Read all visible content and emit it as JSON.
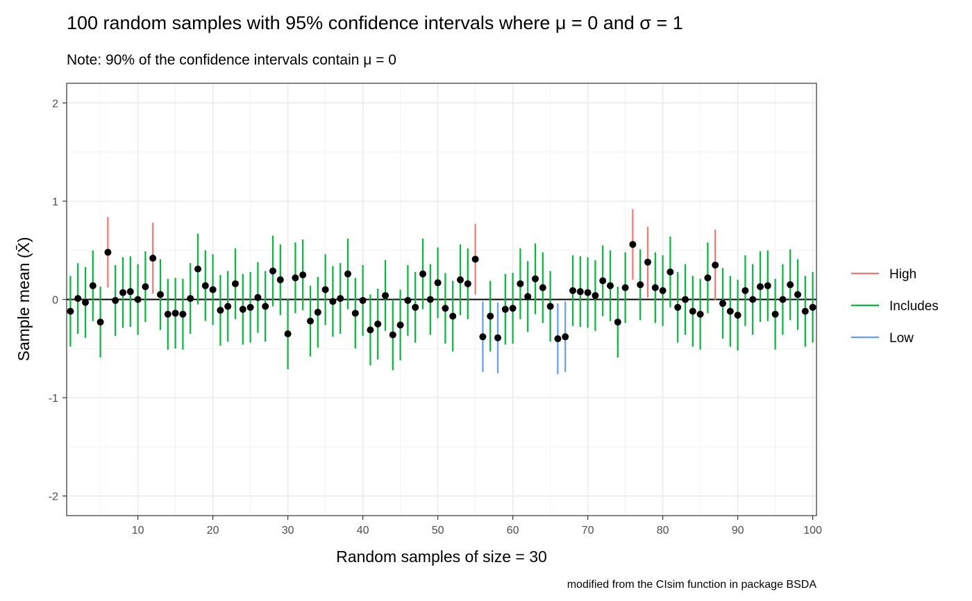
{
  "chart_data": {
    "type": "errorbar-scatter",
    "title": "100 random samples with 95% confidence intervals where μ = 0 and σ = 1",
    "subtitle": "Note: 90% of the confidence intervals contain μ = 0",
    "xlabel": "Random samples of size = 30",
    "ylabel": "Sample mean (X̄)",
    "caption": "modified from the CIsim function in package BSDA",
    "xlim": [
      0.5,
      100.5
    ],
    "ylim": [
      -2.2,
      2.2
    ],
    "x_ticks": [
      10,
      20,
      30,
      40,
      50,
      60,
      70,
      80,
      90,
      100
    ],
    "y_ticks": [
      -2,
      -1,
      0,
      1,
      2
    ],
    "x_tick_labels": [
      "10",
      "20",
      "30",
      "40",
      "50",
      "60",
      "70",
      "80",
      "90",
      "100"
    ],
    "y_tick_labels": [
      "-2",
      "-1",
      "0",
      "1",
      "2"
    ],
    "reference_line": 0,
    "interval_halfwidth": 0.36,
    "legend": {
      "placement": "right",
      "entries": [
        {
          "name": "High",
          "color": "#F8766D"
        },
        {
          "name": "Includes",
          "color": "#00BA38"
        },
        {
          "name": "Low",
          "color": "#619CFF"
        }
      ]
    },
    "point_color": "#000000",
    "sample_means": [
      -0.12,
      0.01,
      -0.03,
      0.14,
      -0.23,
      0.48,
      -0.01,
      0.07,
      0.08,
      0.0,
      0.13,
      0.42,
      0.05,
      -0.15,
      -0.14,
      -0.15,
      0.01,
      0.31,
      0.14,
      0.1,
      -0.11,
      -0.07,
      0.16,
      -0.1,
      -0.08,
      0.02,
      -0.07,
      0.29,
      0.2,
      -0.35,
      0.22,
      0.25,
      -0.22,
      -0.13,
      0.1,
      -0.02,
      0.01,
      0.26,
      -0.14,
      -0.01,
      -0.31,
      -0.25,
      0.04,
      -0.36,
      -0.26,
      -0.01,
      -0.08,
      0.26,
      0.0,
      0.17,
      -0.09,
      -0.17,
      0.2,
      0.16,
      0.41,
      -0.38,
      -0.17,
      -0.39,
      -0.1,
      -0.09,
      0.16,
      0.03,
      0.21,
      0.12,
      -0.07,
      -0.4,
      -0.38,
      0.09,
      0.08,
      0.07,
      0.04,
      0.19,
      0.14,
      -0.23,
      0.12,
      0.56,
      0.15,
      0.38,
      0.12,
      0.09,
      0.28,
      -0.08,
      0.0,
      -0.12,
      -0.15,
      0.22,
      0.35,
      -0.04,
      -0.12,
      -0.16,
      0.09,
      0.0,
      0.13,
      0.14,
      -0.15,
      0.0,
      0.15,
      0.05,
      -0.12,
      -0.08
    ],
    "groups": [
      "Includes",
      "Includes",
      "Includes",
      "Includes",
      "Includes",
      "High",
      "Includes",
      "Includes",
      "Includes",
      "Includes",
      "Includes",
      "High",
      "Includes",
      "Includes",
      "Includes",
      "Includes",
      "Includes",
      "Includes",
      "Includes",
      "Includes",
      "Includes",
      "Includes",
      "Includes",
      "Includes",
      "Includes",
      "Includes",
      "Includes",
      "Includes",
      "Includes",
      "Includes",
      "Includes",
      "Includes",
      "Includes",
      "Includes",
      "Includes",
      "Includes",
      "Includes",
      "Includes",
      "Includes",
      "Includes",
      "Includes",
      "Includes",
      "Includes",
      "Includes",
      "Includes",
      "Includes",
      "Includes",
      "Includes",
      "Includes",
      "Includes",
      "Includes",
      "Includes",
      "Includes",
      "Includes",
      "High",
      "Low",
      "Includes",
      "Low",
      "Includes",
      "Includes",
      "Includes",
      "Includes",
      "Includes",
      "Includes",
      "Includes",
      "Low",
      "Low",
      "Includes",
      "Includes",
      "Includes",
      "Includes",
      "Includes",
      "Includes",
      "Includes",
      "Includes",
      "High",
      "Includes",
      "High",
      "Includes",
      "Includes",
      "Includes",
      "Includes",
      "Includes",
      "Includes",
      "Includes",
      "Includes",
      "High",
      "Includes",
      "Includes",
      "Includes",
      "Includes",
      "Includes",
      "Includes",
      "Includes",
      "Includes",
      "Includes",
      "Includes",
      "Includes",
      "Includes",
      "Includes"
    ],
    "grid": true
  }
}
